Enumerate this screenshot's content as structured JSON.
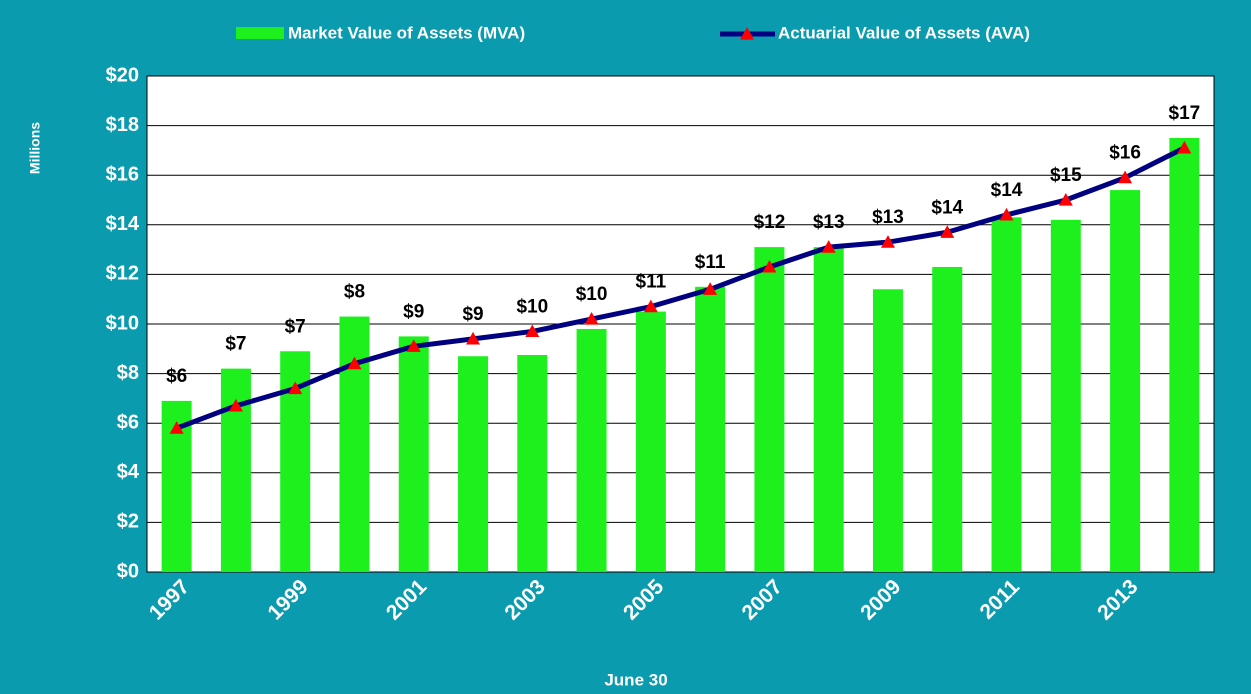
{
  "chart_data": {
    "type": "bar+line",
    "x_label": "June 30",
    "y_label": "Millions",
    "categories": [
      "1997",
      null,
      "1999",
      null,
      "2001",
      null,
      "2003",
      null,
      "2005",
      null,
      "2007",
      null,
      "2009",
      null,
      "2011",
      null,
      "2013",
      null
    ],
    "series": [
      {
        "name": "Market Value of Assets (MVA)",
        "type": "bar",
        "color": "#1ef01e",
        "values": [
          6.9,
          8.2,
          8.9,
          10.3,
          9.5,
          8.7,
          8.75,
          9.8,
          10.5,
          11.5,
          13.1,
          13.1,
          11.4,
          12.3,
          14.3,
          14.2,
          15.4,
          17.5
        ]
      },
      {
        "name": "Actuarial Value of Assets (AVA)",
        "type": "line",
        "color": "#000080",
        "marker_color": "#ff0000",
        "values": [
          5.8,
          6.7,
          7.4,
          8.4,
          9.1,
          9.4,
          9.7,
          10.2,
          10.7,
          11.4,
          12.3,
          13.1,
          13.3,
          13.7,
          14.4,
          15.0,
          15.9,
          17.1
        ],
        "value_labels": [
          "$6",
          "$7",
          "$7",
          "$8",
          "$9",
          "$9",
          "$10",
          "$10",
          "$11",
          "$11",
          "$12",
          "$13",
          "$13",
          "$14",
          "$14",
          "$15",
          "$16",
          "$17"
        ]
      }
    ],
    "ylim": [
      0,
      20
    ],
    "yticks": [
      {
        "value": 0,
        "label": "$0"
      },
      {
        "value": 2,
        "label": "$2"
      },
      {
        "value": 4,
        "label": "$4"
      },
      {
        "value": 6,
        "label": "$6"
      },
      {
        "value": 8,
        "label": "$8"
      },
      {
        "value": 10,
        "label": "$10"
      },
      {
        "value": 12,
        "label": "$12"
      },
      {
        "value": 14,
        "label": "$14"
      },
      {
        "value": 16,
        "label": "$16"
      },
      {
        "value": 18,
        "label": "$18"
      },
      {
        "value": 20,
        "label": "$20"
      }
    ],
    "grid": true,
    "background": "#0a9bae"
  }
}
